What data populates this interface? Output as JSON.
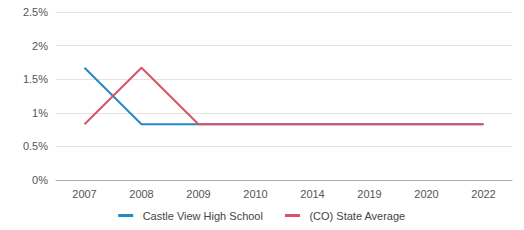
{
  "chart_data": {
    "type": "line",
    "categories": [
      "2007",
      "2008",
      "2009",
      "2010",
      "2014",
      "2019",
      "2020",
      "2022"
    ],
    "series": [
      {
        "name": "Castle View High School",
        "color": "#2389c9",
        "values": [
          1.67,
          0.83,
          0.83,
          0.83,
          0.83,
          0.83,
          0.83,
          0.83
        ]
      },
      {
        "name": "(CO) State Average",
        "color": "#d95466",
        "values": [
          0.83,
          1.67,
          0.83,
          0.83,
          0.83,
          0.83,
          0.83,
          0.83
        ]
      }
    ],
    "ylim": [
      0,
      2.5
    ],
    "yticks": [
      {
        "value": 0,
        "label": "0%"
      },
      {
        "value": 0.5,
        "label": "0.5%"
      },
      {
        "value": 1,
        "label": "1%"
      },
      {
        "value": 1.5,
        "label": "1.5%"
      },
      {
        "value": 2,
        "label": "2%"
      },
      {
        "value": 2.5,
        "label": "2.5%"
      }
    ],
    "grid": true,
    "legend": "bottom"
  }
}
